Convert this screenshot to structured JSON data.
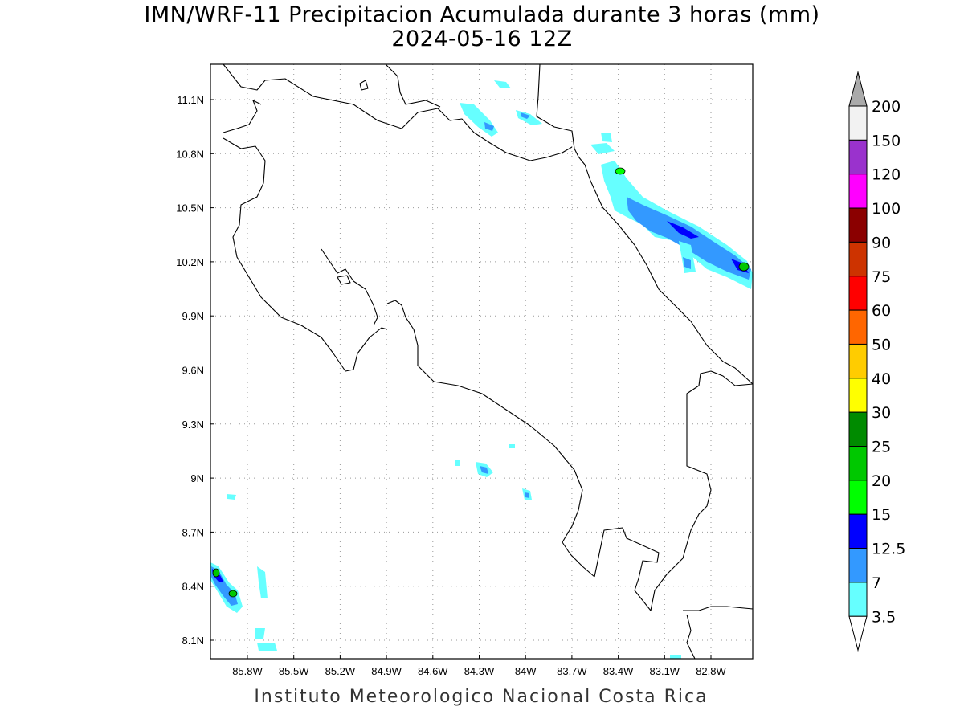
{
  "header": {
    "title_line1": "IMN/WRF-11 Precipitacion Acumulada durante 3 horas (mm)",
    "title_line2": "2024-05-16 12Z"
  },
  "footer": {
    "credit": "Instituto Meteorologico Nacional Costa Rica"
  },
  "map": {
    "lat_ticks": [
      "11.1N",
      "10.8N",
      "10.5N",
      "10.2N",
      "9.9N",
      "9.6N",
      "9.3N",
      "9N",
      "8.7N",
      "8.4N",
      "8.1N"
    ],
    "lon_ticks": [
      "85.8W",
      "85.5W",
      "85.2W",
      "84.9W",
      "84.6W",
      "84.3W",
      "84W",
      "83.7W",
      "83.4W",
      "83.1W",
      "82.8W"
    ]
  },
  "colorbar": {
    "levels": [
      {
        "label": "200",
        "color": "#f2f2f2"
      },
      {
        "label": "150",
        "color": "#9a32cd"
      },
      {
        "label": "120",
        "color": "#ff00ff"
      },
      {
        "label": "100",
        "color": "#8b0000"
      },
      {
        "label": "90",
        "color": "#cd3300"
      },
      {
        "label": "75",
        "color": "#ff0000"
      },
      {
        "label": "60",
        "color": "#ff6600"
      },
      {
        "label": "50",
        "color": "#ffcc00"
      },
      {
        "label": "40",
        "color": "#ffff00"
      },
      {
        "label": "30",
        "color": "#008b00"
      },
      {
        "label": "25",
        "color": "#00c800"
      },
      {
        "label": "20",
        "color": "#00ff00"
      },
      {
        "label": "15",
        "color": "#0000ff"
      },
      {
        "label": "12.5",
        "color": "#3399ff"
      },
      {
        "label": "7",
        "color": "#66ffff"
      },
      {
        "label": "3.5",
        "color": "#ffffff"
      }
    ],
    "top_arrow_color": "#aaaaaa",
    "bottom_arrow_color": "#ffffff"
  }
}
